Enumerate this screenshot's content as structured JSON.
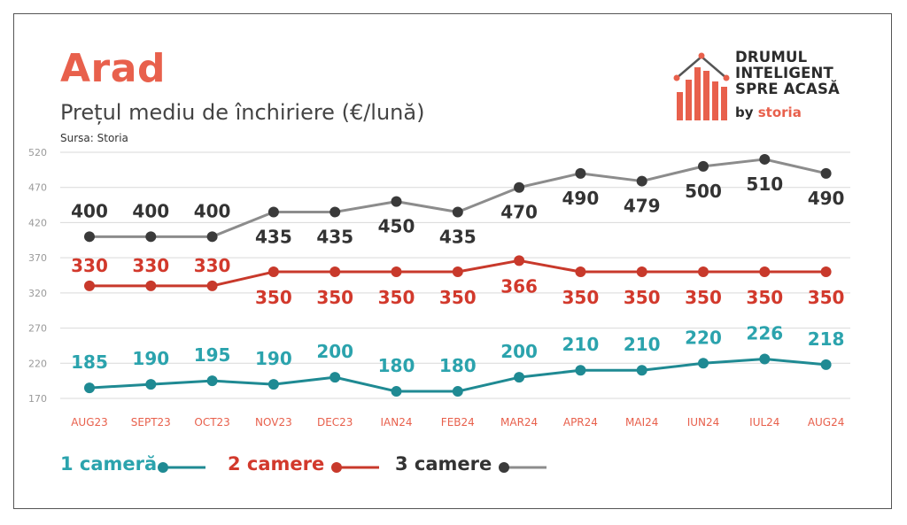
{
  "header": {
    "city": "Arad",
    "subtitle": "Prețul mediu de închiriere (€/lună)",
    "source": "Sursa: Storia"
  },
  "logo": {
    "line1": "DRUMUL",
    "line2": "INTELIGENT",
    "line3": "SPRE ACASĂ",
    "by": "by",
    "brand": "storia"
  },
  "colors": {
    "accent": "#e8604c",
    "series1": "#1f8a93",
    "series2": "#c8392b",
    "series3": "#8c8c8c",
    "series3_marker": "#3a3a3a",
    "series1_label": "#2ba3ad",
    "series2_label": "#d2392c",
    "series3_label": "#333333"
  },
  "chart_data": {
    "type": "line",
    "categories": [
      "AUG23",
      "SEPT23",
      "OCT23",
      "NOV23",
      "DEC23",
      "IAN24",
      "FEB24",
      "MAR24",
      "APR24",
      "MAI24",
      "IUN24",
      "IUL24",
      "AUG24"
    ],
    "y_ticks": [
      170,
      220,
      270,
      320,
      370,
      420,
      470,
      520
    ],
    "ylim": [
      170,
      520
    ],
    "grid": true,
    "legend_position": "bottom-left",
    "series": [
      {
        "name": "1 cameră",
        "values": [
          185,
          190,
          195,
          190,
          200,
          180,
          180,
          200,
          210,
          210,
          220,
          226,
          218
        ]
      },
      {
        "name": "2 camere",
        "values": [
          330,
          330,
          330,
          350,
          350,
          350,
          350,
          366,
          350,
          350,
          350,
          350,
          350
        ]
      },
      {
        "name": "3 camere",
        "values": [
          400,
          400,
          400,
          435,
          435,
          450,
          435,
          470,
          490,
          479,
          500,
          510,
          490
        ]
      }
    ]
  }
}
